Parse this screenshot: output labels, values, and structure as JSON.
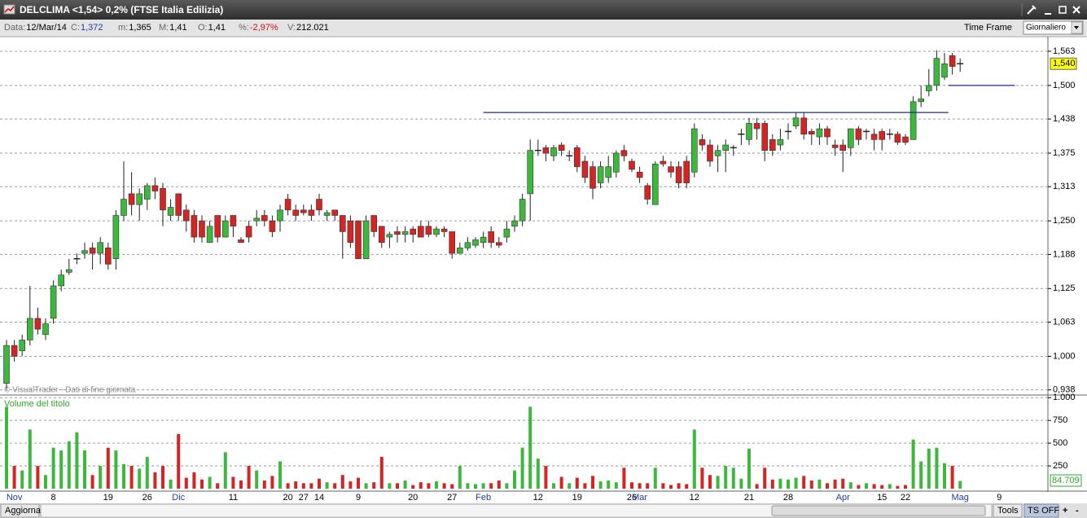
{
  "window": {
    "title": "DELCLIMA <1,54> 0,2%  (FTSE Italia Edilizia)"
  },
  "info_bar": {
    "items": [
      {
        "label": "Data:",
        "value": "12/Mar/14"
      },
      {
        "label": "C:",
        "value": "1,372"
      },
      {
        "label": "m:",
        "value": "1,365"
      },
      {
        "label": "M:",
        "value": "1,41"
      },
      {
        "label": "O:",
        "value": "1,41"
      },
      {
        "label": "%:",
        "value": "-2,97%"
      },
      {
        "label": "V:",
        "value": "212.021"
      }
    ],
    "time_frame": "Time Frame",
    "period": "Giornaliero"
  },
  "chart_data": [
    {
      "type": "candlestick",
      "categories": [
        null,
        "Nov",
        null,
        null,
        null,
        null,
        "8",
        null,
        null,
        null,
        null,
        null,
        null,
        "19",
        null,
        null,
        null,
        null,
        "26",
        null,
        null,
        null,
        "Dic",
        null,
        null,
        null,
        null,
        null,
        null,
        "11",
        null,
        null,
        null,
        null,
        null,
        null,
        "20",
        null,
        "27",
        null,
        "14",
        null,
        null,
        null,
        null,
        "9",
        null,
        null,
        null,
        null,
        null,
        null,
        "20",
        null,
        null,
        null,
        null,
        "27",
        null,
        null,
        null,
        "Feb",
        null,
        null,
        null,
        null,
        null,
        null,
        "12",
        null,
        null,
        null,
        null,
        "19",
        null,
        null,
        null,
        null,
        null,
        null,
        "26",
        "Mar",
        null,
        null,
        null,
        null,
        null,
        null,
        "12",
        null,
        null,
        null,
        null,
        null,
        null,
        "21",
        null,
        null,
        null,
        null,
        "28",
        null,
        null,
        null,
        null,
        null,
        null,
        "Apr",
        null,
        null,
        null,
        null,
        "15",
        null,
        null,
        "22",
        null,
        null,
        null,
        null,
        null,
        null,
        "Mag",
        null,
        null,
        null,
        null,
        "9"
      ],
      "open": [
        0.95,
        1.02,
        1.01,
        1.03,
        1.07,
        1.04,
        1.07,
        1.13,
        1.155,
        1.18,
        1.19,
        1.2,
        1.19,
        1.2,
        1.18,
        1.26,
        1.3,
        1.28,
        1.29,
        1.315,
        1.31,
        1.26,
        1.3,
        1.27,
        1.26,
        1.25,
        1.21,
        1.26,
        1.22,
        1.26,
        1.215,
        1.24,
        1.25,
        1.26,
        1.25,
        1.25,
        1.29,
        1.27,
        1.27,
        1.27,
        1.29,
        1.26,
        1.27,
        1.26,
        1.25,
        1.25,
        1.18,
        1.26,
        1.24,
        1.22,
        1.23,
        1.225,
        1.235,
        1.24,
        1.24,
        1.225,
        1.235,
        1.23,
        1.19,
        1.2,
        1.205,
        1.21,
        1.23,
        1.21,
        1.22,
        1.24,
        1.25,
        1.3,
        1.38,
        1.385,
        1.37,
        1.39,
        1.37,
        1.385,
        1.36,
        1.35,
        1.32,
        1.33,
        1.34,
        1.38,
        1.36,
        1.34,
        1.315,
        1.28,
        1.36,
        1.35,
        1.35,
        1.36,
        1.34,
        1.4,
        1.39,
        1.37,
        1.38,
        1.385,
        1.41,
        1.4,
        1.43,
        1.43,
        1.4,
        1.39,
        1.415,
        1.425,
        1.44,
        1.415,
        1.405,
        1.42,
        1.39,
        1.39,
        1.385,
        1.42,
        1.415,
        1.41,
        1.415,
        1.41,
        1.41,
        1.405,
        1.4,
        1.47,
        1.49,
        1.5,
        1.515,
        1.555,
        1.54,
        null,
        null,
        null,
        null,
        null
      ],
      "high": [
        1.03,
        1.03,
        1.04,
        1.13,
        1.09,
        1.07,
        1.14,
        1.16,
        1.18,
        1.19,
        1.21,
        1.21,
        1.22,
        1.21,
        1.27,
        1.36,
        1.34,
        1.31,
        1.32,
        1.33,
        1.32,
        1.29,
        1.3,
        1.28,
        1.27,
        1.26,
        1.25,
        1.26,
        1.26,
        1.26,
        1.22,
        1.25,
        1.27,
        1.27,
        1.26,
        1.28,
        1.3,
        1.28,
        1.28,
        1.28,
        1.3,
        1.27,
        1.27,
        1.26,
        1.26,
        1.25,
        1.26,
        1.26,
        1.24,
        1.23,
        1.24,
        1.24,
        1.24,
        1.25,
        1.25,
        1.24,
        1.24,
        1.23,
        1.21,
        1.22,
        1.22,
        1.23,
        1.24,
        1.22,
        1.25,
        1.26,
        1.3,
        1.4,
        1.4,
        1.39,
        1.39,
        1.395,
        1.38,
        1.39,
        1.37,
        1.36,
        1.36,
        1.37,
        1.38,
        1.39,
        1.365,
        1.35,
        1.32,
        1.36,
        1.37,
        1.36,
        1.36,
        1.37,
        1.43,
        1.41,
        1.4,
        1.39,
        1.4,
        1.39,
        1.42,
        1.44,
        1.44,
        1.435,
        1.41,
        1.42,
        1.43,
        1.45,
        1.45,
        1.42,
        1.43,
        1.425,
        1.4,
        1.4,
        1.42,
        1.425,
        1.42,
        1.42,
        1.42,
        1.42,
        1.415,
        1.41,
        1.48,
        1.5,
        1.53,
        1.565,
        1.56,
        1.56,
        1.55,
        null,
        null,
        null,
        null,
        null
      ],
      "low": [
        0.94,
        0.99,
        1.0,
        1.02,
        1.04,
        1.03,
        1.06,
        1.12,
        1.15,
        1.17,
        1.18,
        1.16,
        1.17,
        1.16,
        1.16,
        1.25,
        1.26,
        1.25,
        1.27,
        1.29,
        1.24,
        1.25,
        1.25,
        1.23,
        1.21,
        1.21,
        1.21,
        1.21,
        1.22,
        1.22,
        1.21,
        1.21,
        1.24,
        1.24,
        1.22,
        1.23,
        1.26,
        1.25,
        1.26,
        1.25,
        1.26,
        1.25,
        1.25,
        1.18,
        1.2,
        1.18,
        1.18,
        1.22,
        1.2,
        1.2,
        1.21,
        1.21,
        1.21,
        1.22,
        1.22,
        1.22,
        1.22,
        1.18,
        1.19,
        1.195,
        1.2,
        1.2,
        1.2,
        1.2,
        1.21,
        1.23,
        1.24,
        1.25,
        1.37,
        1.36,
        1.36,
        1.37,
        1.36,
        1.34,
        1.32,
        1.29,
        1.31,
        1.32,
        1.33,
        1.36,
        1.34,
        1.32,
        1.28,
        1.28,
        1.35,
        1.33,
        1.31,
        1.31,
        1.33,
        1.38,
        1.35,
        1.34,
        1.34,
        1.37,
        1.39,
        1.39,
        1.4,
        1.36,
        1.37,
        1.38,
        1.4,
        1.42,
        1.4,
        1.39,
        1.39,
        1.39,
        1.37,
        1.34,
        1.37,
        1.39,
        1.4,
        1.38,
        1.38,
        1.4,
        1.39,
        1.39,
        1.4,
        1.46,
        1.48,
        1.49,
        1.51,
        1.52,
        1.525,
        null,
        null,
        null,
        null,
        null
      ],
      "close": [
        1.02,
        1.0,
        1.03,
        1.07,
        1.05,
        1.06,
        1.13,
        1.15,
        1.16,
        1.18,
        1.195,
        1.19,
        1.21,
        1.17,
        1.26,
        1.29,
        1.28,
        1.3,
        1.315,
        1.305,
        1.27,
        1.275,
        1.26,
        1.25,
        1.22,
        1.22,
        1.24,
        1.22,
        1.25,
        1.24,
        1.21,
        1.22,
        1.255,
        1.25,
        1.23,
        1.27,
        1.27,
        1.26,
        1.265,
        1.26,
        1.27,
        1.265,
        1.26,
        1.23,
        1.21,
        1.18,
        1.25,
        1.23,
        1.21,
        1.225,
        1.225,
        1.23,
        1.225,
        1.22,
        1.225,
        1.235,
        1.23,
        1.19,
        1.2,
        1.21,
        1.215,
        1.22,
        1.21,
        1.205,
        1.235,
        1.25,
        1.29,
        1.38,
        1.38,
        1.375,
        1.385,
        1.38,
        1.37,
        1.35,
        1.33,
        1.31,
        1.35,
        1.35,
        1.375,
        1.37,
        1.345,
        1.33,
        1.29,
        1.355,
        1.355,
        1.34,
        1.32,
        1.32,
        1.42,
        1.39,
        1.36,
        1.38,
        1.39,
        1.385,
        1.41,
        1.43,
        1.42,
        1.38,
        1.38,
        1.4,
        1.415,
        1.44,
        1.41,
        1.41,
        1.42,
        1.405,
        1.385,
        1.38,
        1.42,
        1.4,
        1.415,
        1.4,
        1.4,
        1.41,
        1.395,
        1.395,
        1.47,
        1.475,
        1.5,
        1.55,
        1.54,
        1.535,
        1.54,
        null,
        null,
        null,
        null,
        null
      ],
      "ylim": [
        0.93,
        1.59
      ],
      "yticks": [
        {
          "value": 0.938,
          "label": "0,938"
        },
        {
          "value": 1.0,
          "label": "1,000"
        },
        {
          "value": 1.063,
          "label": "1,063"
        },
        {
          "value": 1.125,
          "label": "1,125"
        },
        {
          "value": 1.188,
          "label": "1,188"
        },
        {
          "value": 1.25,
          "label": "1,250"
        },
        {
          "value": 1.313,
          "label": "1,313"
        },
        {
          "value": 1.375,
          "label": "1,375"
        },
        {
          "value": 1.438,
          "label": "1,438"
        },
        {
          "value": 1.5,
          "label": "1,500"
        },
        {
          "value": 1.563,
          "label": "1,563"
        }
      ],
      "grid": true,
      "up_color": "#3cb83c",
      "down_color": "#d42424",
      "annotation": "© VisualTrader - Dati di fine giornata",
      "last_value": {
        "value": 1.54,
        "label": "1,540"
      },
      "hlines": [
        {
          "start": 61,
          "end": 120.5,
          "value": 1.45,
          "color": "#1e2a9a"
        },
        {
          "start": 120.5,
          "end": 129,
          "value": 1.5,
          "color": "#1e2a9a"
        }
      ]
    },
    {
      "type": "bar",
      "title": "Volume del titolo",
      "values": [
        900,
        250,
        200,
        650,
        250,
        150,
        450,
        420,
        520,
        620,
        420,
        150,
        250,
        450,
        420,
        270,
        250,
        220,
        350,
        180,
        250,
        100,
        600,
        120,
        180,
        100,
        130,
        60,
        400,
        130,
        90,
        250,
        200,
        90,
        140,
        300,
        60,
        80,
        60,
        60,
        110,
        70,
        60,
        150,
        80,
        120,
        60,
        70,
        350,
        60,
        60,
        90,
        40,
        70,
        60,
        80,
        60,
        50,
        250,
        60,
        50,
        60,
        60,
        90,
        60,
        200,
        450,
        900,
        330,
        250,
        60,
        130,
        60,
        120,
        60,
        140,
        80,
        90,
        70,
        230,
        70,
        60,
        60,
        230,
        60,
        40,
        60,
        50,
        650,
        230,
        150,
        140,
        250,
        230,
        110,
        440,
        50,
        230,
        100,
        110,
        100,
        120,
        140,
        90,
        100,
        60,
        100,
        110,
        70,
        40,
        60,
        50,
        40,
        50,
        30,
        40,
        540,
        300,
        440,
        450,
        280,
        250,
        84.709,
        null,
        null,
        null,
        null,
        null
      ],
      "value_labels": [
        null,
        null,
        null,
        null,
        null,
        null,
        null,
        null,
        null,
        null,
        null,
        null,
        null,
        null,
        null,
        null,
        null,
        null,
        null,
        null,
        null,
        null,
        null,
        null,
        null,
        null,
        null,
        null,
        null,
        null,
        null,
        null,
        null,
        null,
        null,
        null,
        null,
        null,
        null,
        null,
        null,
        null,
        null,
        null,
        null,
        null,
        null,
        null,
        null,
        null,
        null,
        null,
        null,
        null,
        null,
        null,
        null,
        null,
        null,
        null,
        null,
        null,
        null,
        null,
        null,
        null,
        null,
        null,
        null,
        null,
        null,
        null,
        null,
        null,
        null,
        null,
        null,
        null,
        null,
        null,
        null,
        null,
        null,
        null,
        null,
        null,
        null,
        null,
        null,
        null,
        null,
        null,
        null,
        null,
        null,
        null,
        null,
        null,
        null,
        null,
        null,
        null,
        null,
        null,
        null,
        null,
        null,
        null,
        null,
        null,
        null,
        null,
        null,
        null,
        null,
        null,
        null,
        null,
        null,
        null,
        null,
        null,
        "84.709",
        null,
        null,
        null,
        null,
        null
      ],
      "ylim": [
        0,
        1020
      ],
      "yticks": [
        250,
        500,
        750,
        {
          "value": 1000,
          "label": "1.000"
        }
      ],
      "grid": true,
      "title_color": "#2aa82a"
    }
  ],
  "status_bar": {
    "refresh": "Aggiorna",
    "tools": "Tools",
    "ts": "TS OFF",
    "plus": "+",
    "minus": "-"
  }
}
